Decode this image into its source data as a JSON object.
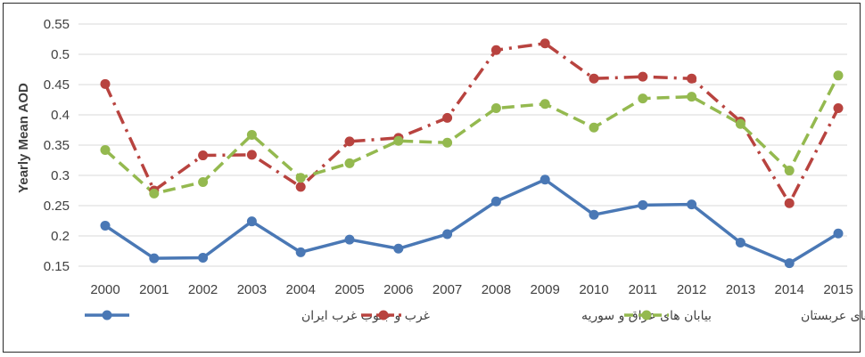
{
  "chart_data": {
    "type": "line",
    "title": "",
    "xlabel": "",
    "ylabel": "Yearly Mean AOD",
    "ylim": [
      0.15,
      0.55
    ],
    "yticks": [
      "0.15",
      "0.2",
      "0.25",
      "0.3",
      "0.35",
      "0.4",
      "0.45",
      "0.5",
      "0.55"
    ],
    "ytick_values": [
      0.15,
      0.2,
      0.25,
      0.3,
      0.35,
      0.4,
      0.45,
      0.5,
      0.55
    ],
    "categories": [
      "2000",
      "2001",
      "2002",
      "2003",
      "2004",
      "2005",
      "2006",
      "2007",
      "2008",
      "2009",
      "2010",
      "2011",
      "2012",
      "2013",
      "2014",
      "2015"
    ],
    "grid": true,
    "legend_position": "bottom",
    "series": [
      {
        "name": "غرب و جنوب غرب ایران",
        "color": "#4a78b5",
        "style": "solid",
        "values": [
          0.217,
          0.163,
          0.164,
          0.224,
          0.173,
          0.194,
          0.179,
          0.203,
          0.257,
          0.293,
          0.235,
          0.251,
          0.252,
          0.189,
          0.155,
          0.204
        ]
      },
      {
        "name": "بیابان های عراق و سوریه",
        "color": "#b8433f",
        "style": "dashdot",
        "values": [
          0.451,
          0.275,
          0.333,
          0.334,
          0.281,
          0.356,
          0.362,
          0.395,
          0.507,
          0.518,
          0.46,
          0.463,
          0.46,
          0.389,
          0.254,
          0.411
        ]
      },
      {
        "name": "بیابان های عربستان",
        "color": "#94b94f",
        "style": "dash",
        "values": [
          0.342,
          0.27,
          0.289,
          0.367,
          0.296,
          0.32,
          0.357,
          0.354,
          0.411,
          0.418,
          0.379,
          0.427,
          0.43,
          0.385,
          0.308,
          0.465
        ]
      }
    ]
  }
}
